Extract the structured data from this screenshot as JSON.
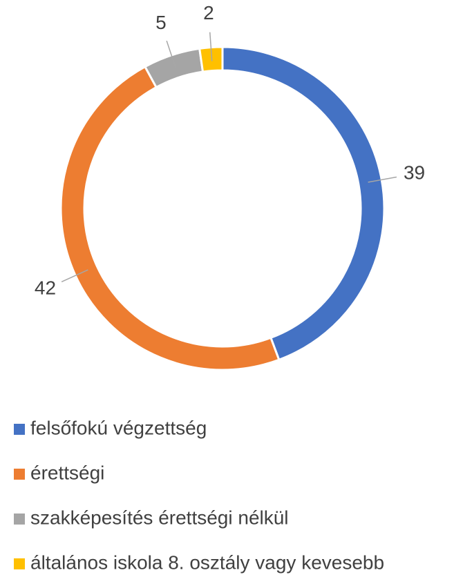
{
  "chart_data": {
    "type": "pie",
    "categories": [
      "felsőfokú végzettség",
      "érettségi",
      "szakképesítés érettségi nélkül",
      "általános iskola 8. osztály vagy kevesebb"
    ],
    "values": [
      39,
      42,
      5,
      2
    ],
    "colors": [
      "#4472c4",
      "#ed7d31",
      "#a5a5a5",
      "#ffc000"
    ],
    "donut": true,
    "legend": "bottom"
  }
}
